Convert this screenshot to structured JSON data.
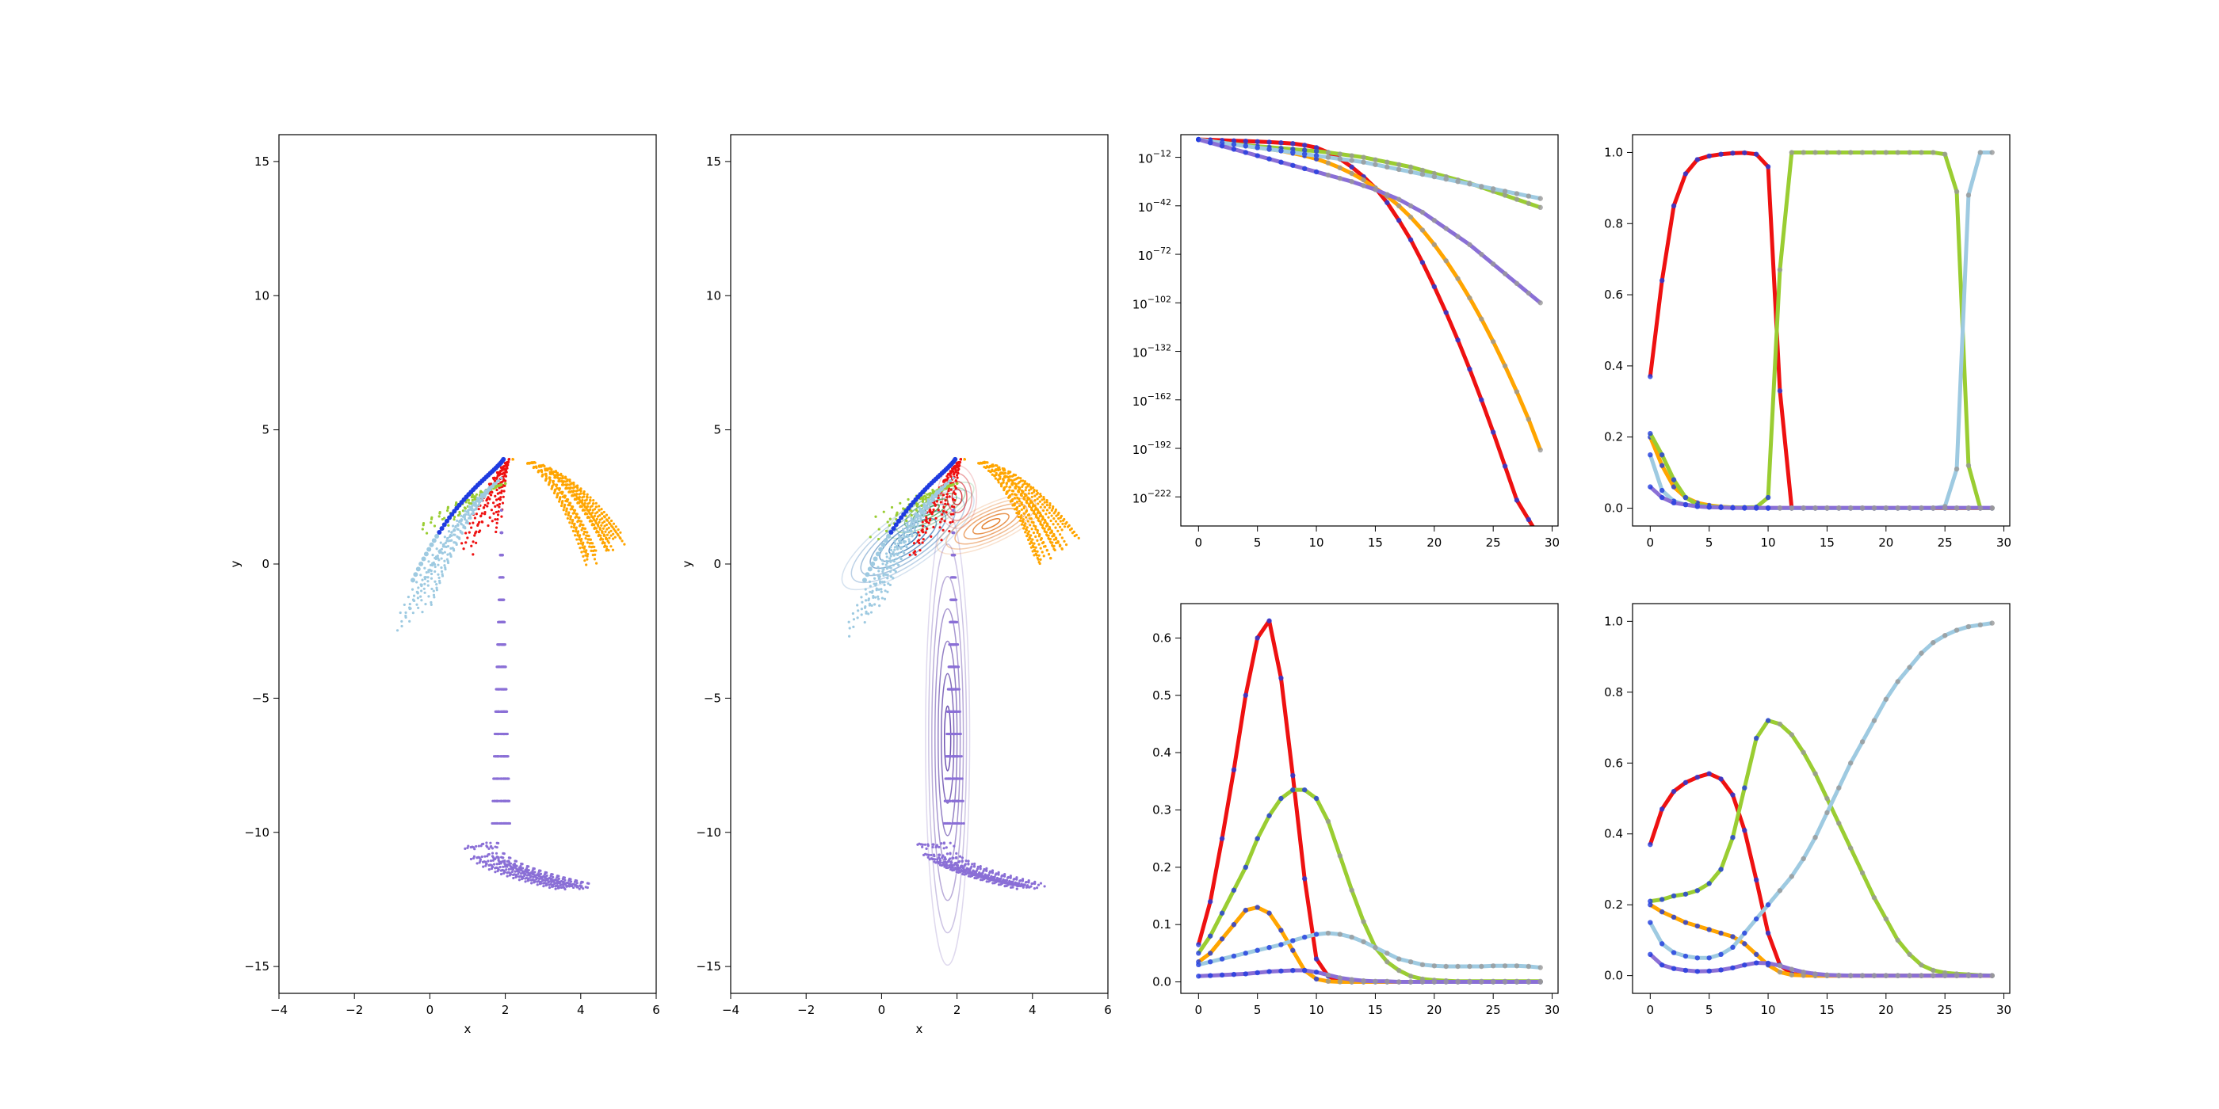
{
  "colors": {
    "red": "#ee1111",
    "orange": "#ffa500",
    "green": "#9acd32",
    "lightblue": "#9ecae1",
    "purple": "#8a6fd6",
    "blue": "#1f3be0",
    "gray": "#999999"
  },
  "chart_data": [
    {
      "id": "scatter-left",
      "type": "scatter",
      "title": "",
      "xlabel": "x",
      "ylabel": "y",
      "xlim": [
        -4,
        6
      ],
      "ylim": [
        -16,
        16
      ],
      "xticks": [
        "−4",
        "−2",
        "0",
        "2",
        "4",
        "6"
      ],
      "yticks": [
        "−15",
        "−10",
        "−5",
        "0",
        "5",
        "10",
        "15"
      ],
      "contours": false,
      "groups": [
        {
          "color": "orange",
          "start": [
            2.2,
            3.9
          ],
          "end": [
            4.6,
            0.6
          ],
          "count": 20,
          "steps": 25
        },
        {
          "color": "red",
          "start": [
            2.1,
            3.9
          ],
          "end": [
            1.3,
            1.0
          ],
          "count": 14,
          "steps": 12
        },
        {
          "color": "green",
          "start": [
            2.0,
            3.0
          ],
          "end": [
            0.3,
            1.7
          ],
          "count": 10,
          "steps": 10
        },
        {
          "color": "lightblue",
          "start": [
            1.9,
            3.2
          ],
          "end": [
            -0.5,
            -1.8
          ],
          "count": 12,
          "steps": 25
        },
        {
          "color": "purple",
          "start": [
            1.9,
            2.0
          ],
          "end": [
            1.6,
            -10.0
          ],
          "count": 24,
          "steps": 30
        }
      ]
    },
    {
      "id": "scatter-contour",
      "type": "scatter",
      "title": "",
      "xlabel": "x",
      "ylabel": "y",
      "xlim": [
        -4,
        6
      ],
      "ylim": [
        -16,
        16
      ],
      "xticks": [
        "−4",
        "−2",
        "0",
        "2",
        "4",
        "6"
      ],
      "yticks": [
        "−15",
        "−10",
        "−5",
        "0",
        "5",
        "10",
        "15"
      ],
      "contours": true,
      "groups": [
        {
          "color": "orange",
          "start": [
            2.2,
            3.9
          ],
          "end": [
            4.6,
            0.6
          ],
          "count": 20,
          "steps": 25
        },
        {
          "color": "red",
          "start": [
            2.1,
            3.9
          ],
          "end": [
            1.3,
            1.0
          ],
          "count": 14,
          "steps": 12
        },
        {
          "color": "green",
          "start": [
            2.0,
            3.0
          ],
          "end": [
            0.3,
            1.7
          ],
          "count": 10,
          "steps": 10
        },
        {
          "color": "lightblue",
          "start": [
            1.9,
            3.2
          ],
          "end": [
            -0.5,
            -1.8
          ],
          "count": 12,
          "steps": 25
        },
        {
          "color": "purple",
          "start": [
            1.9,
            2.0
          ],
          "end": [
            1.6,
            -10.0
          ],
          "count": 24,
          "steps": 30
        }
      ]
    },
    {
      "id": "log-weights",
      "type": "line",
      "yscale": "log",
      "title": "",
      "xlabel": "",
      "ylabel": "",
      "xlim": [
        -1.5,
        30.5
      ],
      "ylim": [
        -240,
        2
      ],
      "xticks": [
        0,
        5,
        10,
        15,
        20,
        25,
        30
      ],
      "yticks": [
        {
          "base": "10",
          "exp": "−12",
          "value": -12
        },
        {
          "base": "10",
          "exp": "−42",
          "value": -42
        },
        {
          "base": "10",
          "exp": "−72",
          "value": -72
        },
        {
          "base": "10",
          "exp": "−102",
          "value": -102
        },
        {
          "base": "10",
          "exp": "−132",
          "value": -132
        },
        {
          "base": "10",
          "exp": "−162",
          "value": -162
        },
        {
          "base": "10",
          "exp": "−192",
          "value": -192
        },
        {
          "base": "10",
          "exp": "−222",
          "value": -222
        }
      ],
      "series": [
        {
          "color": "red",
          "values": [
            -1,
            -1.2,
            -1.5,
            -1.8,
            -2,
            -2.3,
            -2.6,
            -3,
            -3.5,
            -4.5,
            -6,
            -9,
            -13,
            -18,
            -24,
            -31,
            -40,
            -51,
            -63,
            -77,
            -92,
            -108,
            -125,
            -143,
            -162,
            -182,
            -203,
            -224,
            -236,
            -248
          ]
        },
        {
          "color": "orange",
          "values": [
            -1,
            -2,
            -3,
            -4,
            -5,
            -6,
            -7,
            -8,
            -9.5,
            -11,
            -13,
            -15.5,
            -18.5,
            -22,
            -26,
            -31,
            -36,
            -42,
            -49,
            -57,
            -66,
            -76,
            -87,
            -99,
            -112,
            -126,
            -141,
            -157,
            -174,
            -193
          ]
        },
        {
          "color": "green",
          "values": [
            -1,
            -2,
            -3,
            -3.8,
            -4.5,
            -5.2,
            -5.8,
            -6.4,
            -7,
            -7.6,
            -8.2,
            -9,
            -10,
            -11,
            -12,
            -13.5,
            -15,
            -16.5,
            -18,
            -20,
            -22,
            -24,
            -26,
            -28,
            -30.5,
            -33,
            -35.5,
            -38,
            -40.5,
            -43
          ]
        },
        {
          "color": "lightblue",
          "values": [
            -1,
            -2,
            -3,
            -4,
            -5,
            -6,
            -7,
            -8,
            -9,
            -10,
            -11,
            -12,
            -13,
            -14,
            -15,
            -16.5,
            -18,
            -19.5,
            -21,
            -22.5,
            -24,
            -25.5,
            -27,
            -28.5,
            -30,
            -31.5,
            -33,
            -34.5,
            -36,
            -37.5
          ]
        },
        {
          "color": "purple",
          "values": [
            -1,
            -3,
            -5,
            -7,
            -9,
            -11,
            -13,
            -15,
            -17,
            -19,
            -21,
            -23,
            -25,
            -27,
            -29.5,
            -32,
            -35,
            -38,
            -42,
            -46,
            -51,
            -56,
            -61,
            -66,
            -72,
            -78,
            -84,
            -90,
            -96,
            -102
          ]
        }
      ]
    },
    {
      "id": "responsibility",
      "type": "line",
      "title": "",
      "xlabel": "",
      "ylabel": "",
      "xlim": [
        -1.5,
        30.5
      ],
      "ylim": [
        -0.05,
        1.05
      ],
      "xticks": [
        0,
        5,
        10,
        15,
        20,
        25,
        30
      ],
      "yticks": [
        "0.0",
        "0.2",
        "0.4",
        "0.6",
        "0.8",
        "1.0"
      ],
      "series": [
        {
          "color": "red",
          "values": [
            0.37,
            0.64,
            0.85,
            0.94,
            0.98,
            0.99,
            0.995,
            0.998,
            0.999,
            0.995,
            0.96,
            0.33,
            0.0,
            0,
            0,
            0,
            0,
            0,
            0,
            0,
            0,
            0,
            0,
            0,
            0,
            0,
            0,
            0,
            0,
            0
          ]
        },
        {
          "color": "orange",
          "values": [
            0.2,
            0.12,
            0.06,
            0.03,
            0.015,
            0.008,
            0.004,
            0.002,
            0.001,
            0.001,
            0.0,
            0,
            0,
            0,
            0,
            0,
            0,
            0,
            0,
            0,
            0,
            0,
            0,
            0,
            0,
            0,
            0,
            0,
            0,
            0
          ]
        },
        {
          "color": "green",
          "values": [
            0.21,
            0.15,
            0.08,
            0.03,
            0.01,
            0.005,
            0.003,
            0.002,
            0.002,
            0.003,
            0.03,
            0.67,
            1.0,
            1.0,
            1.0,
            1.0,
            1.0,
            1.0,
            1.0,
            1.0,
            1.0,
            1.0,
            1.0,
            1.0,
            1.0,
            0.995,
            0.89,
            0.12,
            0.0,
            0.0
          ]
        },
        {
          "color": "lightblue",
          "values": [
            0.15,
            0.05,
            0.02,
            0.01,
            0.005,
            0.003,
            0.002,
            0.001,
            0,
            0,
            0,
            0,
            0,
            0,
            0,
            0,
            0,
            0,
            0,
            0,
            0,
            0,
            0,
            0,
            0,
            0.005,
            0.11,
            0.88,
            1.0,
            1.0
          ]
        },
        {
          "color": "purple",
          "values": [
            0.06,
            0.03,
            0.015,
            0.01,
            0.005,
            0.003,
            0.002,
            0.001,
            0.001,
            0.001,
            0.001,
            0.001,
            0.001,
            0.001,
            0.001,
            0.001,
            0.001,
            0.001,
            0.001,
            0.001,
            0.001,
            0.001,
            0.001,
            0.001,
            0.001,
            0.001,
            0.001,
            0.001,
            0.001,
            0.001
          ]
        }
      ]
    },
    {
      "id": "density",
      "type": "line",
      "title": "",
      "xlabel": "",
      "ylabel": "",
      "xlim": [
        -1.5,
        30.5
      ],
      "ylim": [
        -0.02,
        0.66
      ],
      "xticks": [
        0,
        5,
        10,
        15,
        20,
        25,
        30
      ],
      "yticks": [
        "0.0",
        "0.1",
        "0.2",
        "0.3",
        "0.4",
        "0.5",
        "0.6"
      ],
      "series": [
        {
          "color": "red",
          "values": [
            0.065,
            0.14,
            0.25,
            0.37,
            0.5,
            0.6,
            0.63,
            0.53,
            0.36,
            0.18,
            0.04,
            0.01,
            0.001,
            0,
            0,
            0,
            0,
            0,
            0,
            0,
            0,
            0,
            0,
            0,
            0,
            0,
            0,
            0,
            0,
            0
          ]
        },
        {
          "color": "orange",
          "values": [
            0.035,
            0.05,
            0.075,
            0.1,
            0.125,
            0.13,
            0.12,
            0.09,
            0.055,
            0.02,
            0.005,
            0.001,
            0,
            0,
            0,
            0,
            0,
            0,
            0,
            0,
            0,
            0,
            0,
            0,
            0,
            0,
            0,
            0,
            0,
            0
          ]
        },
        {
          "color": "green",
          "values": [
            0.05,
            0.08,
            0.12,
            0.16,
            0.2,
            0.25,
            0.29,
            0.32,
            0.335,
            0.335,
            0.32,
            0.28,
            0.22,
            0.16,
            0.105,
            0.06,
            0.035,
            0.02,
            0.01,
            0.005,
            0.003,
            0.002,
            0.001,
            0.001,
            0.001,
            0.001,
            0.001,
            0.001,
            0.001,
            0.001
          ]
        },
        {
          "color": "lightblue",
          "values": [
            0.03,
            0.035,
            0.04,
            0.045,
            0.05,
            0.055,
            0.06,
            0.065,
            0.072,
            0.078,
            0.083,
            0.085,
            0.083,
            0.078,
            0.07,
            0.06,
            0.05,
            0.04,
            0.035,
            0.03,
            0.028,
            0.027,
            0.027,
            0.027,
            0.027,
            0.028,
            0.028,
            0.028,
            0.027,
            0.025
          ]
        },
        {
          "color": "purple",
          "values": [
            0.01,
            0.011,
            0.012,
            0.013,
            0.014,
            0.016,
            0.018,
            0.019,
            0.02,
            0.02,
            0.017,
            0.012,
            0.007,
            0.004,
            0.002,
            0.001,
            0.001,
            0,
            0,
            0,
            0,
            0,
            0,
            0,
            0,
            0,
            0,
            0,
            0,
            0
          ]
        }
      ]
    },
    {
      "id": "mixing-weights",
      "type": "line",
      "title": "",
      "xlabel": "",
      "ylabel": "",
      "xlim": [
        -1.5,
        30.5
      ],
      "ylim": [
        -0.05,
        1.05
      ],
      "xticks": [
        0,
        5,
        10,
        15,
        20,
        25,
        30
      ],
      "yticks": [
        "0.0",
        "0.2",
        "0.4",
        "0.6",
        "0.8",
        "1.0"
      ],
      "series": [
        {
          "color": "red",
          "values": [
            0.37,
            0.47,
            0.52,
            0.545,
            0.56,
            0.57,
            0.555,
            0.51,
            0.41,
            0.27,
            0.12,
            0.03,
            0.005,
            0.001,
            0,
            0,
            0,
            0,
            0,
            0,
            0,
            0,
            0,
            0,
            0,
            0,
            0,
            0,
            0,
            0
          ]
        },
        {
          "color": "orange",
          "values": [
            0.2,
            0.18,
            0.165,
            0.15,
            0.14,
            0.13,
            0.12,
            0.11,
            0.09,
            0.06,
            0.03,
            0.01,
            0.002,
            0.001,
            0,
            0,
            0,
            0,
            0,
            0,
            0,
            0,
            0,
            0,
            0,
            0,
            0,
            0,
            0,
            0
          ]
        },
        {
          "color": "green",
          "values": [
            0.21,
            0.215,
            0.225,
            0.23,
            0.24,
            0.26,
            0.3,
            0.39,
            0.53,
            0.67,
            0.72,
            0.71,
            0.68,
            0.63,
            0.57,
            0.5,
            0.43,
            0.36,
            0.29,
            0.22,
            0.16,
            0.1,
            0.06,
            0.03,
            0.015,
            0.008,
            0.005,
            0.003,
            0.001,
            0
          ]
        },
        {
          "color": "lightblue",
          "values": [
            0.15,
            0.09,
            0.065,
            0.055,
            0.05,
            0.05,
            0.06,
            0.08,
            0.12,
            0.16,
            0.2,
            0.24,
            0.28,
            0.33,
            0.39,
            0.46,
            0.53,
            0.6,
            0.66,
            0.72,
            0.78,
            0.83,
            0.87,
            0.91,
            0.94,
            0.96,
            0.975,
            0.985,
            0.99,
            0.995
          ]
        },
        {
          "color": "purple",
          "values": [
            0.06,
            0.03,
            0.02,
            0.015,
            0.012,
            0.013,
            0.016,
            0.022,
            0.03,
            0.036,
            0.035,
            0.028,
            0.018,
            0.01,
            0.005,
            0.002,
            0.001,
            0,
            0,
            0,
            0,
            0,
            0,
            0,
            0,
            0,
            0,
            0,
            0,
            0
          ]
        }
      ]
    }
  ]
}
